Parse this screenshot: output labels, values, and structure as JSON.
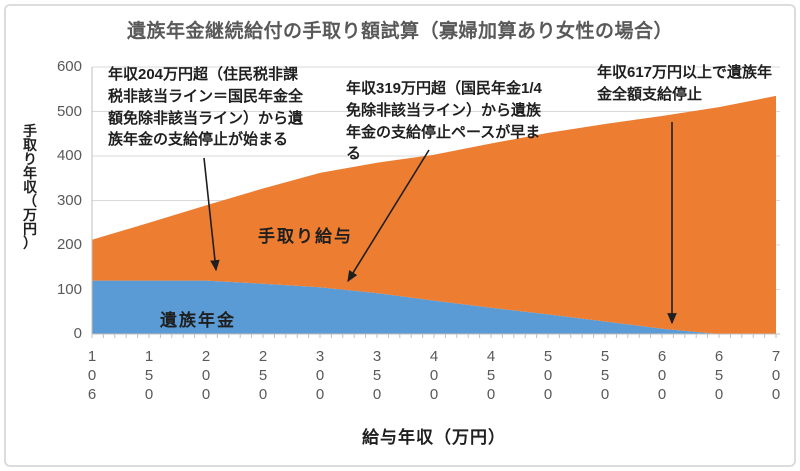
{
  "chart_data": {
    "type": "area",
    "stacked": true,
    "title": "遺族年金継続給付の手取り額試算（寡婦加算あり女性の場合）",
    "xlabel": "給与年収（万円）",
    "ylabel": "手取り年収（万円）",
    "categories": [
      106,
      150,
      200,
      250,
      300,
      350,
      400,
      450,
      500,
      550,
      600,
      650,
      700
    ],
    "series": [
      {
        "name": "遺族年金",
        "color": "#5b9bd5",
        "values": [
          120,
          120,
          120,
          113,
          105,
          92,
          75,
          59,
          44,
          28,
          12,
          0,
          0
        ]
      },
      {
        "name": "手取り給与",
        "color": "#ed7d31",
        "values": [
          92,
          130,
          169,
          214,
          257,
          293,
          328,
          369,
          408,
          444,
          478,
          510,
          535
        ]
      }
    ],
    "ylim": [
      0,
      600
    ],
    "ytick_step": 100,
    "grid": true,
    "legend_position": "none",
    "annotations": [
      {
        "text": "年収204万円超（住民税非課税非該当ライン＝国民年金全額免除非該当ライン）から遺族年金の支給停止が始まる",
        "target_x": 204
      },
      {
        "text": "年収319万円超（国民年金1/4免除非該当ライン）から遺族年金の支給停止ペースが早まる",
        "target_x": 319
      },
      {
        "text": "年収617万円以上で遺族年金全額支給停止",
        "target_x": 617
      }
    ]
  },
  "colors": {
    "pension_area": "#5b9bd5",
    "salary_area": "#ed7d31",
    "gridline": "#d9d9d9",
    "axis": "#bfbfbf",
    "tick_label": "#595959",
    "title": "#595959",
    "annotation_text": "#1f1f1f"
  }
}
